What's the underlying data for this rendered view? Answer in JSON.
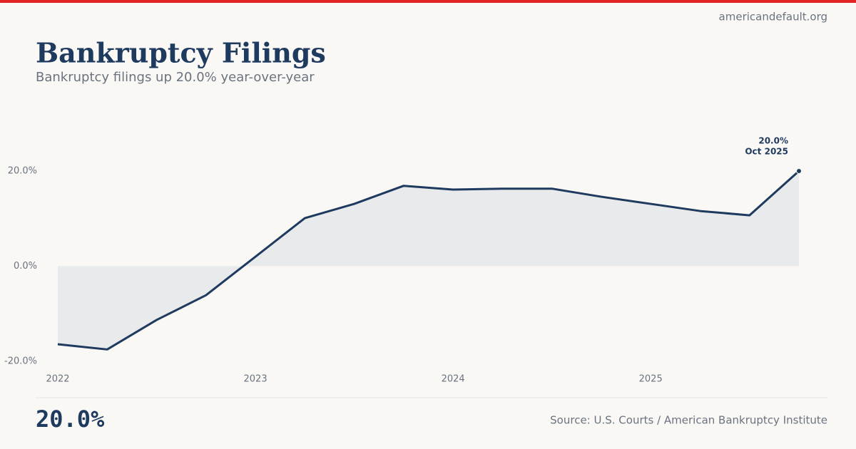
{
  "site": "americandefault.org",
  "chart_data": {
    "type": "line",
    "title": "Bankruptcy Filings",
    "subtitle": "Bankruptcy filings up 20.0% year-over-year",
    "x": [
      "2022-01",
      "2022-04",
      "2022-07",
      "2022-10",
      "2023-01",
      "2023-04",
      "2023-07",
      "2023-10",
      "2024-01",
      "2024-04",
      "2024-07",
      "2024-10",
      "2025-01",
      "2025-04",
      "2025-07",
      "2025-10"
    ],
    "values": [
      -16.4,
      -17.5,
      -11.3,
      -6.1,
      2.0,
      10.1,
      13.1,
      16.9,
      16.1,
      16.3,
      16.3,
      14.6,
      13.1,
      11.6,
      10.7,
      20.0
    ],
    "color": "#1f3a5f",
    "area_color": "#e8eaeb",
    "xlim": [
      "2022-01",
      "2025-10"
    ],
    "xticks": [
      2022,
      2023,
      2024,
      2025
    ],
    "ylim": [
      -20,
      20
    ],
    "yticks": [
      {
        "value": -20,
        "label": "-20.0%"
      },
      {
        "value": 0,
        "label": "0.0%"
      },
      {
        "value": 20,
        "label": "20.0%"
      }
    ],
    "highlight": {
      "value_label": "20.0%",
      "date_label": "Oct 2025"
    }
  },
  "footer": {
    "headline": "20.0%",
    "source": "Source: U.S. Courts / American Bankruptcy Institute"
  }
}
